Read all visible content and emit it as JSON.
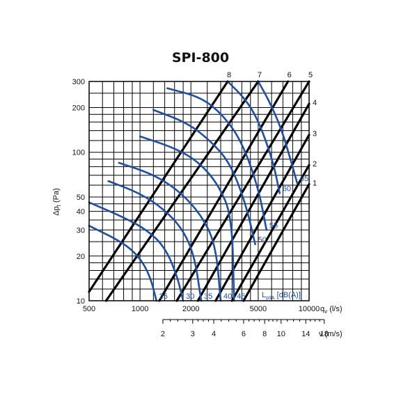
{
  "chart_data": {
    "type": "line",
    "title": "SPI-800",
    "xlabel": "q",
    "xlabel_sub": "v",
    "xlabel_unit": "(l/s)",
    "ylabel": "Δp",
    "ylabel_sub": "t",
    "ylabel_unit": "(Pa)",
    "xscale": "log",
    "yscale": "log",
    "xlim": [
      500,
      10000
    ],
    "ylim": [
      10,
      300
    ],
    "grid": true,
    "x_ticks": [
      "500",
      "1000",
      "2000",
      "5000",
      "10000"
    ],
    "y_ticks": [
      "10",
      "20",
      "30",
      "40",
      "50",
      "100",
      "200",
      "300"
    ],
    "x_grid_values": [
      500,
      600,
      700,
      800,
      900,
      1000,
      1200,
      1400,
      1600,
      1800,
      2000,
      2500,
      3000,
      3500,
      4000,
      4500,
      5000,
      6000,
      7000,
      8000,
      9000,
      10000
    ],
    "y_grid_values": [
      10,
      12,
      14,
      16,
      18,
      20,
      25,
      30,
      35,
      40,
      45,
      50,
      60,
      70,
      80,
      90,
      100,
      120,
      140,
      160,
      180,
      200,
      250,
      300
    ],
    "velocity_axis": {
      "label": "v (m/s)",
      "ticks": [
        "2",
        "3",
        "4",
        "6",
        "8",
        "10",
        "14",
        "18"
      ],
      "q_positions": [
        1365,
        2050,
        2730,
        4100,
        5460,
        6830,
        9560,
        12290
      ]
    },
    "resistance_lines": [
      {
        "name": "8",
        "points": [
          [
            500,
            11.5
          ],
          [
            3300,
            300
          ]
        ]
      },
      {
        "name": "7",
        "points": [
          [
            630,
            10
          ],
          [
            5000,
            300
          ]
        ]
      },
      {
        "name": "6",
        "points": [
          [
            1300,
            10
          ],
          [
            7500,
            300
          ]
        ]
      },
      {
        "name": "5",
        "points": [
          [
            1650,
            10
          ],
          [
            10000,
            300
          ]
        ]
      },
      {
        "name": "4",
        "points": [
          [
            2200,
            10
          ],
          [
            10000,
            212
          ]
        ]
      },
      {
        "name": "3",
        "points": [
          [
            2800,
            10
          ],
          [
            10000,
            131
          ]
        ]
      },
      {
        "name": "2",
        "points": [
          [
            3500,
            10
          ],
          [
            10000,
            82
          ]
        ]
      },
      {
        "name": "1",
        "points": [
          [
            4100,
            10
          ],
          [
            10000,
            61
          ]
        ]
      }
    ],
    "sound_label": "L",
    "sound_label_sub": "pIIA",
    "sound_label_unit": "[dB(A)]",
    "sound_curves": [
      {
        "name": "25",
        "points": [
          [
            500,
            32
          ],
          [
            800,
            24.5
          ],
          [
            1000,
            19.5
          ],
          [
            1150,
            14.5
          ],
          [
            1250,
            10
          ]
        ]
      },
      {
        "name": "30",
        "points": [
          [
            500,
            46
          ],
          [
            800,
            36.5
          ],
          [
            1100,
            30
          ],
          [
            1400,
            23
          ],
          [
            1650,
            15
          ],
          [
            1800,
            10
          ]
        ]
      },
      {
        "name": "35",
        "points": [
          [
            650,
            64
          ],
          [
            1000,
            53
          ],
          [
            1400,
            41
          ],
          [
            1800,
            30
          ],
          [
            2100,
            20
          ],
          [
            2300,
            10
          ]
        ]
      },
      {
        "name": "40",
        "points": [
          [
            750,
            85
          ],
          [
            1200,
            71
          ],
          [
            1700,
            55
          ],
          [
            2300,
            38
          ],
          [
            2800,
            24
          ],
          [
            3000,
            10
          ]
        ]
      },
      {
        "name": "45",
        "points": [
          [
            1000,
            128
          ],
          [
            1600,
            107
          ],
          [
            2200,
            87
          ],
          [
            2900,
            61
          ],
          [
            3500,
            37
          ],
          [
            3600,
            10
          ]
        ]
      },
      {
        "name": "50",
        "points": [
          [
            1200,
            193
          ],
          [
            1900,
            158
          ],
          [
            2600,
            120
          ],
          [
            3400,
            85
          ],
          [
            4200,
            46
          ],
          [
            4800,
            24
          ]
        ]
      },
      {
        "name": "55",
        "points": [
          [
            1450,
            270
          ],
          [
            2300,
            235
          ],
          [
            3100,
            178
          ],
          [
            4000,
            118
          ],
          [
            5000,
            58
          ],
          [
            5600,
            30
          ]
        ]
      },
      {
        "name": "60",
        "points": [
          [
            3300,
            300
          ],
          [
            4200,
            228
          ],
          [
            5000,
            165
          ],
          [
            6100,
            88
          ],
          [
            6700,
            53
          ]
        ]
      },
      {
        "name": "65",
        "points": [
          [
            5000,
            300
          ],
          [
            5800,
            222
          ],
          [
            6800,
            148
          ],
          [
            7800,
            88
          ],
          [
            8500,
            62
          ]
        ]
      }
    ]
  }
}
